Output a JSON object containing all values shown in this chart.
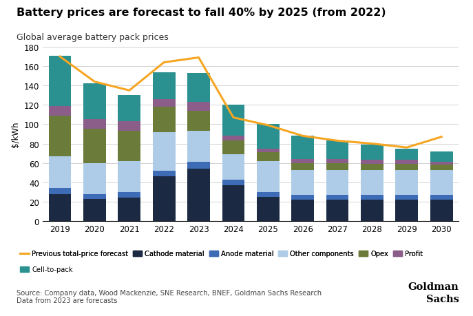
{
  "years": [
    2019,
    2020,
    2021,
    2022,
    2023,
    2024,
    2025,
    2026,
    2027,
    2028,
    2029,
    2030
  ],
  "cathode": [
    28,
    23,
    24,
    46,
    54,
    37,
    25,
    22,
    22,
    22,
    22,
    22
  ],
  "anode": [
    6,
    5,
    6,
    6,
    7,
    6,
    5,
    5,
    5,
    5,
    5,
    5
  ],
  "other_components": [
    33,
    32,
    32,
    40,
    32,
    26,
    32,
    26,
    26,
    26,
    26,
    26
  ],
  "opex": [
    42,
    35,
    31,
    26,
    21,
    14,
    9,
    7,
    7,
    6,
    6,
    5
  ],
  "profit": [
    10,
    10,
    10,
    8,
    9,
    5,
    4,
    4,
    4,
    4,
    4,
    3
  ],
  "cell_to_pack": [
    52,
    37,
    27,
    28,
    30,
    32,
    25,
    24,
    19,
    16,
    12,
    11
  ],
  "orange_line": [
    170,
    144,
    135,
    164,
    169,
    107,
    99,
    88,
    83,
    80,
    76,
    87
  ],
  "colors": {
    "cathode": "#1b2a42",
    "anode": "#3d6bb5",
    "other_components": "#aecce8",
    "opex": "#6b7c3a",
    "profit": "#8b5e8a",
    "cell_to_pack": "#2a9090",
    "orange_line": "#f5a623"
  },
  "title": "Battery prices are forecast to fall 40% by 2025 (from 2022)",
  "subtitle": "Global average battery pack prices",
  "ylabel": "$/kWh",
  "ylim": [
    0,
    180
  ],
  "yticks": [
    0,
    20,
    40,
    60,
    80,
    100,
    120,
    140,
    160,
    180
  ],
  "source_text": "Source: Company data, Wood Mackenzie, SNE Research, BNEF, Goldman Sachs Research\nData from 2023 are forecasts",
  "legend_row1": [
    "Previous total-price forecast",
    "Cathode material",
    "Anode material",
    "Other components",
    "Opex",
    "Profit"
  ],
  "legend_row2": [
    "Cell-to-pack"
  ]
}
